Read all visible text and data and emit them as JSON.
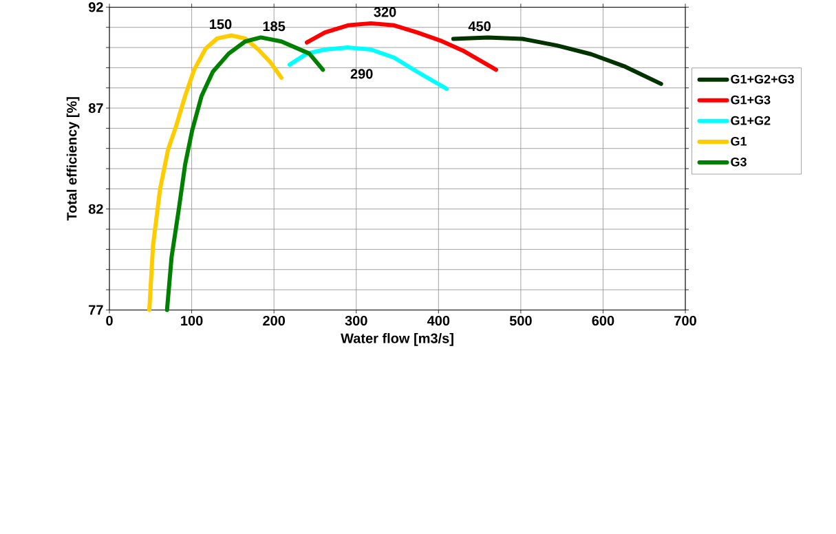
{
  "chart_data": {
    "type": "line",
    "xlabel": "Water flow [m3/s]",
    "ylabel": "Total efficiency [%]",
    "xlim": [
      0,
      700
    ],
    "xticks": [
      0,
      100,
      200,
      300,
      400,
      500,
      600,
      700
    ],
    "ylim": [
      77,
      92
    ],
    "yticks": [
      77,
      {
        "value": 78,
        "label": null
      },
      {
        "value": 79,
        "label": null
      },
      {
        "value": 80,
        "label": null
      },
      {
        "value": 81,
        "label": null
      },
      82,
      {
        "value": 83,
        "label": null
      },
      {
        "value": 84,
        "label": null
      },
      {
        "value": 85,
        "label": null
      },
      {
        "value": 86,
        "label": null
      },
      87,
      {
        "value": 88,
        "label": null
      },
      {
        "value": 89,
        "label": null
      },
      {
        "value": 90,
        "label": null
      },
      {
        "value": 91,
        "label": null
      },
      92
    ],
    "grid": true,
    "legend": "right",
    "marker": "none",
    "line_style": "solid",
    "series": [
      {
        "name": "G1+G2+G3",
        "color": "#003300",
        "x": [
          418,
          460,
          502,
          544,
          585.5,
          627,
          670.5
        ],
        "values": [
          90.43,
          90.5,
          90.43,
          90.1,
          89.67,
          89.05,
          88.2
        ]
      },
      {
        "name": "G1+G3",
        "color": "#ff0000",
        "x": [
          240,
          262,
          290,
          318,
          346,
          374,
          402,
          429.5,
          470
        ],
        "values": [
          90.25,
          90.75,
          91.1,
          91.2,
          91.1,
          90.75,
          90.35,
          89.85,
          88.9
        ]
      },
      {
        "name": "G1+G2",
        "color": "#00ffff",
        "x": [
          219,
          240,
          262,
          290,
          318,
          346,
          374,
          410
        ],
        "values": [
          89.15,
          89.7,
          89.9,
          90.0,
          89.9,
          89.5,
          88.8,
          87.95
        ]
      },
      {
        "name": "G1",
        "color": "#ffcc00",
        "x": [
          48.5,
          53,
          61.6,
          71.3,
          81,
          92,
          103,
          117,
          131,
          148,
          165,
          181,
          195,
          209
        ],
        "values": [
          77,
          80.2,
          83.0,
          84.95,
          86.1,
          87.6,
          88.9,
          89.95,
          90.45,
          90.6,
          90.45,
          89.9,
          89.3,
          88.5
        ]
      },
      {
        "name": "G3",
        "color": "#008000",
        "x": [
          70,
          75.5,
          84,
          92,
          100.6,
          112,
          125.7,
          145,
          165,
          184,
          209,
          243,
          259.5
        ],
        "values": [
          77,
          79.6,
          81.9,
          84.2,
          85.9,
          87.6,
          88.8,
          89.7,
          90.3,
          90.5,
          90.3,
          89.7,
          88.9
        ]
      }
    ],
    "annotations": [
      {
        "text": "150",
        "x": 150,
        "y": 90.6
      },
      {
        "text": "185",
        "x": 185,
        "y": 90.5
      },
      {
        "text": "320",
        "x": 320,
        "y": 91.2
      },
      {
        "text": "450",
        "x": 450,
        "y": 90.5
      },
      {
        "text": "290",
        "x": 290,
        "y": 90.0
      }
    ]
  }
}
